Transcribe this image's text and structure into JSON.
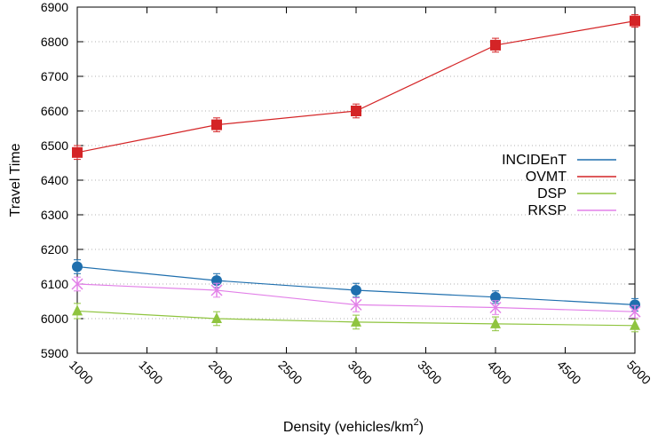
{
  "chart_data": {
    "type": "line",
    "title": "",
    "xlabel": "Density (vehicles/km",
    "xlabel_sup": "2",
    "xlabel_close": ")",
    "ylabel": "Travel Time",
    "xlim": [
      1000,
      5000
    ],
    "ylim": [
      5900,
      6900
    ],
    "grid": "horizontal dotted",
    "legend_position": "right",
    "x_ticks": [
      "1000",
      "1500",
      "2000",
      "2500",
      "3000",
      "3500",
      "4000",
      "4500",
      "5000"
    ],
    "y_ticks": [
      "5900",
      "6000",
      "6100",
      "6200",
      "6300",
      "6400",
      "6500",
      "6600",
      "6700",
      "6800",
      "6900"
    ],
    "x": [
      1000,
      2000,
      3000,
      4000,
      5000
    ],
    "series": [
      {
        "name": "INCIDEnT",
        "color": "#1f6fae",
        "marker": "circle",
        "values": [
          6150,
          6110,
          6082,
          6062,
          6040
        ],
        "err": [
          20,
          20,
          20,
          18,
          18
        ]
      },
      {
        "name": "OVMT",
        "color": "#d42426",
        "marker": "square",
        "values": [
          6480,
          6560,
          6600,
          6790,
          6860
        ],
        "err": [
          20,
          20,
          20,
          20,
          18
        ]
      },
      {
        "name": "DSP",
        "color": "#8fc43f",
        "marker": "triangle",
        "values": [
          6022,
          6000,
          5990,
          5985,
          5980
        ],
        "err": [
          22,
          20,
          20,
          20,
          18
        ]
      },
      {
        "name": "RKSP",
        "color": "#e280e8",
        "marker": "star",
        "values": [
          6100,
          6082,
          6040,
          6032,
          6020
        ],
        "err": [
          20,
          20,
          20,
          20,
          18
        ]
      }
    ]
  }
}
